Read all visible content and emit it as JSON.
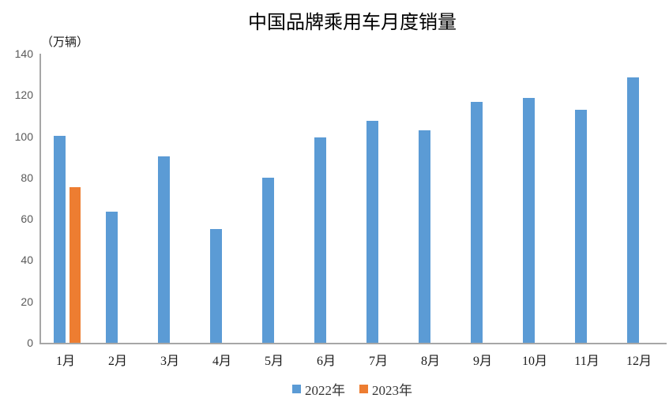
{
  "chart_data": {
    "type": "bar",
    "title": "中国品牌乘用车月度销量",
    "ylabel": "（万辆）",
    "categories": [
      "1月",
      "2月",
      "3月",
      "4月",
      "5月",
      "6月",
      "7月",
      "8月",
      "9月",
      "10月",
      "11月",
      "12月"
    ],
    "series": [
      {
        "name": "2022年",
        "color": "#5B9BD5",
        "values": [
          100.4,
          63.4,
          90.2,
          55.1,
          79.9,
          99.5,
          107.4,
          102.9,
          116.6,
          118.7,
          113.0,
          128.7
        ]
      },
      {
        "name": "2023年",
        "color": "#ED7D31",
        "values": [
          75.5,
          null,
          null,
          null,
          null,
          null,
          null,
          null,
          null,
          null,
          null,
          null
        ]
      }
    ],
    "ylim": [
      0,
      140
    ],
    "yticks": [
      0,
      20,
      40,
      60,
      80,
      100,
      120,
      140
    ],
    "grid": false,
    "legend_position": "bottom"
  },
  "colors": {
    "axis_line": "#A6A6A6",
    "tick_text": "#595959",
    "label_text": "#1A1A1A",
    "background": "#FFFFFF"
  }
}
